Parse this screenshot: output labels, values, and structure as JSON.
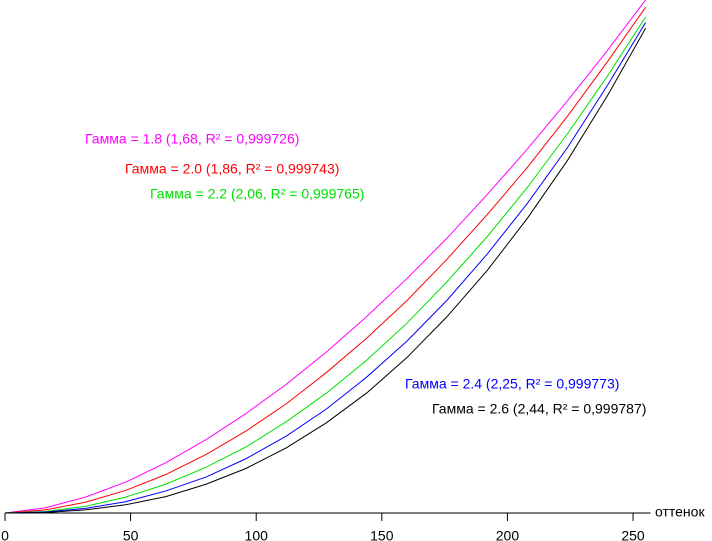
{
  "chart_data": {
    "type": "line",
    "x_label": "оттенок",
    "x": [
      0,
      16,
      32,
      48,
      64,
      80,
      96,
      112,
      128,
      144,
      160,
      176,
      192,
      208,
      224,
      240,
      255
    ],
    "xlim": [
      0,
      255
    ],
    "xticks": [
      0,
      50,
      100,
      150,
      200,
      250
    ],
    "ylim": [
      0,
      1
    ],
    "series": [
      {
        "name": "Гамма = 1.8 (1,68, R² = 0,999726)",
        "color": "#ff00ff",
        "values": [
          0,
          0.01,
          0.031,
          0.06,
          0.098,
          0.143,
          0.194,
          0.251,
          0.314,
          0.383,
          0.457,
          0.536,
          0.621,
          0.71,
          0.804,
          0.903,
          1
        ]
      },
      {
        "name": "Гамма = 2.0 (1,86, R² = 0,999743)",
        "color": "#ff0000",
        "values": [
          0,
          0.006,
          0.021,
          0.044,
          0.075,
          0.114,
          0.16,
          0.213,
          0.274,
          0.341,
          0.414,
          0.495,
          0.582,
          0.674,
          0.774,
          0.881,
          0.986
        ]
      },
      {
        "name": "Гамма = 2.2 (2,06, R² = 0,999765)",
        "color": "#00e000",
        "values": [
          0,
          0.003,
          0.013,
          0.031,
          0.056,
          0.089,
          0.129,
          0.178,
          0.234,
          0.298,
          0.37,
          0.451,
          0.539,
          0.635,
          0.74,
          0.853,
          0.967
        ]
      },
      {
        "name": "Гамма = 2.4 (2,25, R² = 0,999773)",
        "color": "#0000ff",
        "values": [
          0,
          0.002,
          0.009,
          0.022,
          0.043,
          0.07,
          0.106,
          0.15,
          0.203,
          0.265,
          0.335,
          0.415,
          0.505,
          0.604,
          0.713,
          0.835,
          0.956
        ]
      },
      {
        "name": "Гамма = 2.6 (2,44, R² = 0,999787)",
        "color": "#000000",
        "values": [
          0,
          0.001,
          0.006,
          0.016,
          0.032,
          0.056,
          0.087,
          0.127,
          0.176,
          0.234,
          0.303,
          0.383,
          0.473,
          0.575,
          0.688,
          0.815,
          0.945
        ]
      }
    ]
  }
}
